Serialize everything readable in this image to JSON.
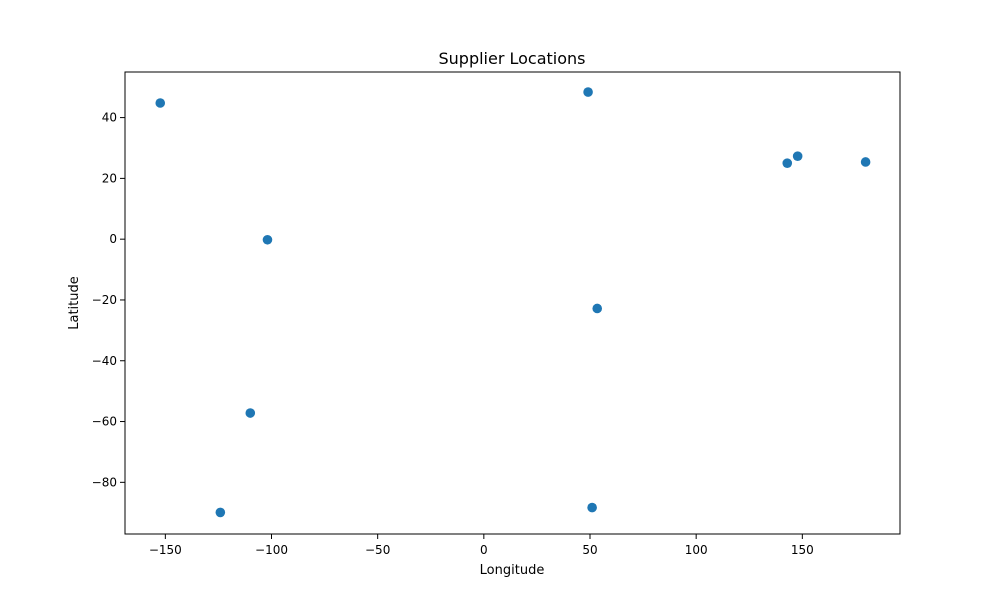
{
  "chart_data": {
    "type": "scatter",
    "title": "Supplier Locations",
    "xlabel": "Longitude",
    "ylabel": "Latitude",
    "xlim": [
      -169,
      196
    ],
    "ylim": [
      -97,
      55
    ],
    "xticks": [
      -150,
      -100,
      -50,
      0,
      50,
      100,
      150
    ],
    "yticks": [
      -80,
      -60,
      -40,
      -20,
      0,
      20,
      40
    ],
    "xtick_labels": [
      "−150",
      "−100",
      "−50",
      "0",
      "50",
      "100",
      "150"
    ],
    "ytick_labels": [
      "−80",
      "−60",
      "−40",
      "−20",
      "0",
      "20",
      "40"
    ],
    "grid": false,
    "marker_color": "#1f77b4",
    "points": [
      {
        "x": -152.4,
        "y": 44.8
      },
      {
        "x": -101.9,
        "y": -0.2
      },
      {
        "x": -110.0,
        "y": -57.2
      },
      {
        "x": -124.1,
        "y": -89.9
      },
      {
        "x": 49.1,
        "y": 48.4
      },
      {
        "x": 53.4,
        "y": -22.8
      },
      {
        "x": 51.0,
        "y": -88.3
      },
      {
        "x": 142.9,
        "y": 25.0
      },
      {
        "x": 147.8,
        "y": 27.3
      },
      {
        "x": 179.8,
        "y": 25.4
      }
    ]
  }
}
